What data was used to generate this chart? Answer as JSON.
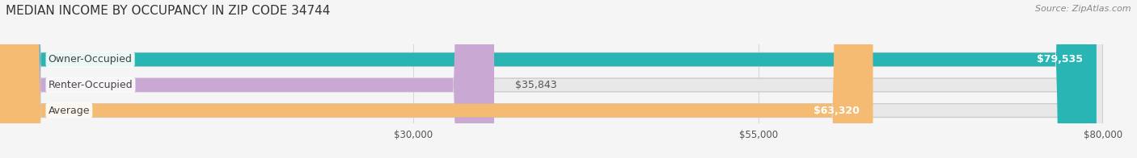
{
  "title": "MEDIAN INCOME BY OCCUPANCY IN ZIP CODE 34744",
  "source": "Source: ZipAtlas.com",
  "categories": [
    "Owner-Occupied",
    "Renter-Occupied",
    "Average"
  ],
  "values": [
    79535,
    35843,
    63320
  ],
  "bar_colors": [
    "#2ab5b5",
    "#c9a8d4",
    "#f5bb72"
  ],
  "value_labels": [
    "$79,535",
    "$35,843",
    "$63,320"
  ],
  "xlim": [
    0,
    80000
  ],
  "xticks": [
    30000,
    55000,
    80000
  ],
  "xticklabels": [
    "$30,000",
    "$55,000",
    "$80,000"
  ],
  "background_color": "#f5f5f5",
  "bar_background_color": "#e8e8e8",
  "title_fontsize": 11,
  "source_fontsize": 8,
  "label_fontsize": 9,
  "value_fontsize": 9,
  "bar_height": 0.52
}
